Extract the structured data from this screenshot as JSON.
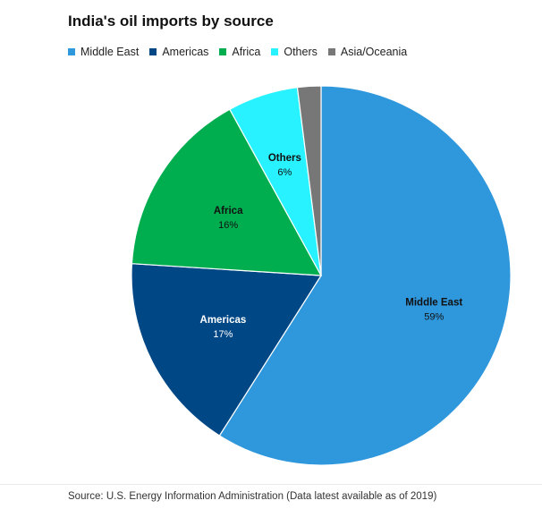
{
  "chart_data": {
    "type": "pie",
    "title": "India's oil imports by source",
    "legend_position": "top-left",
    "slices": [
      {
        "name": "Middle East",
        "value": 59,
        "label": "59%",
        "color": "#2f97dc",
        "text_color": "#111111",
        "show_label": true
      },
      {
        "name": "Americas",
        "value": 17,
        "label": "17%",
        "color": "#004785",
        "text_color": "#ffffff",
        "show_label": true
      },
      {
        "name": "Africa",
        "value": 16,
        "label": "16%",
        "color": "#00ad4f",
        "text_color": "#111111",
        "show_label": true
      },
      {
        "name": "Others",
        "value": 6,
        "label": "6%",
        "color": "#28f2ff",
        "text_color": "#111111",
        "show_label": true
      },
      {
        "name": "Asia/Oceania",
        "value": 2,
        "label": "2%",
        "color": "#777777",
        "text_color": "#111111",
        "show_label": false
      }
    ]
  },
  "source": "Source: U.S. Energy Information Administration (Data latest available as of 2019)"
}
